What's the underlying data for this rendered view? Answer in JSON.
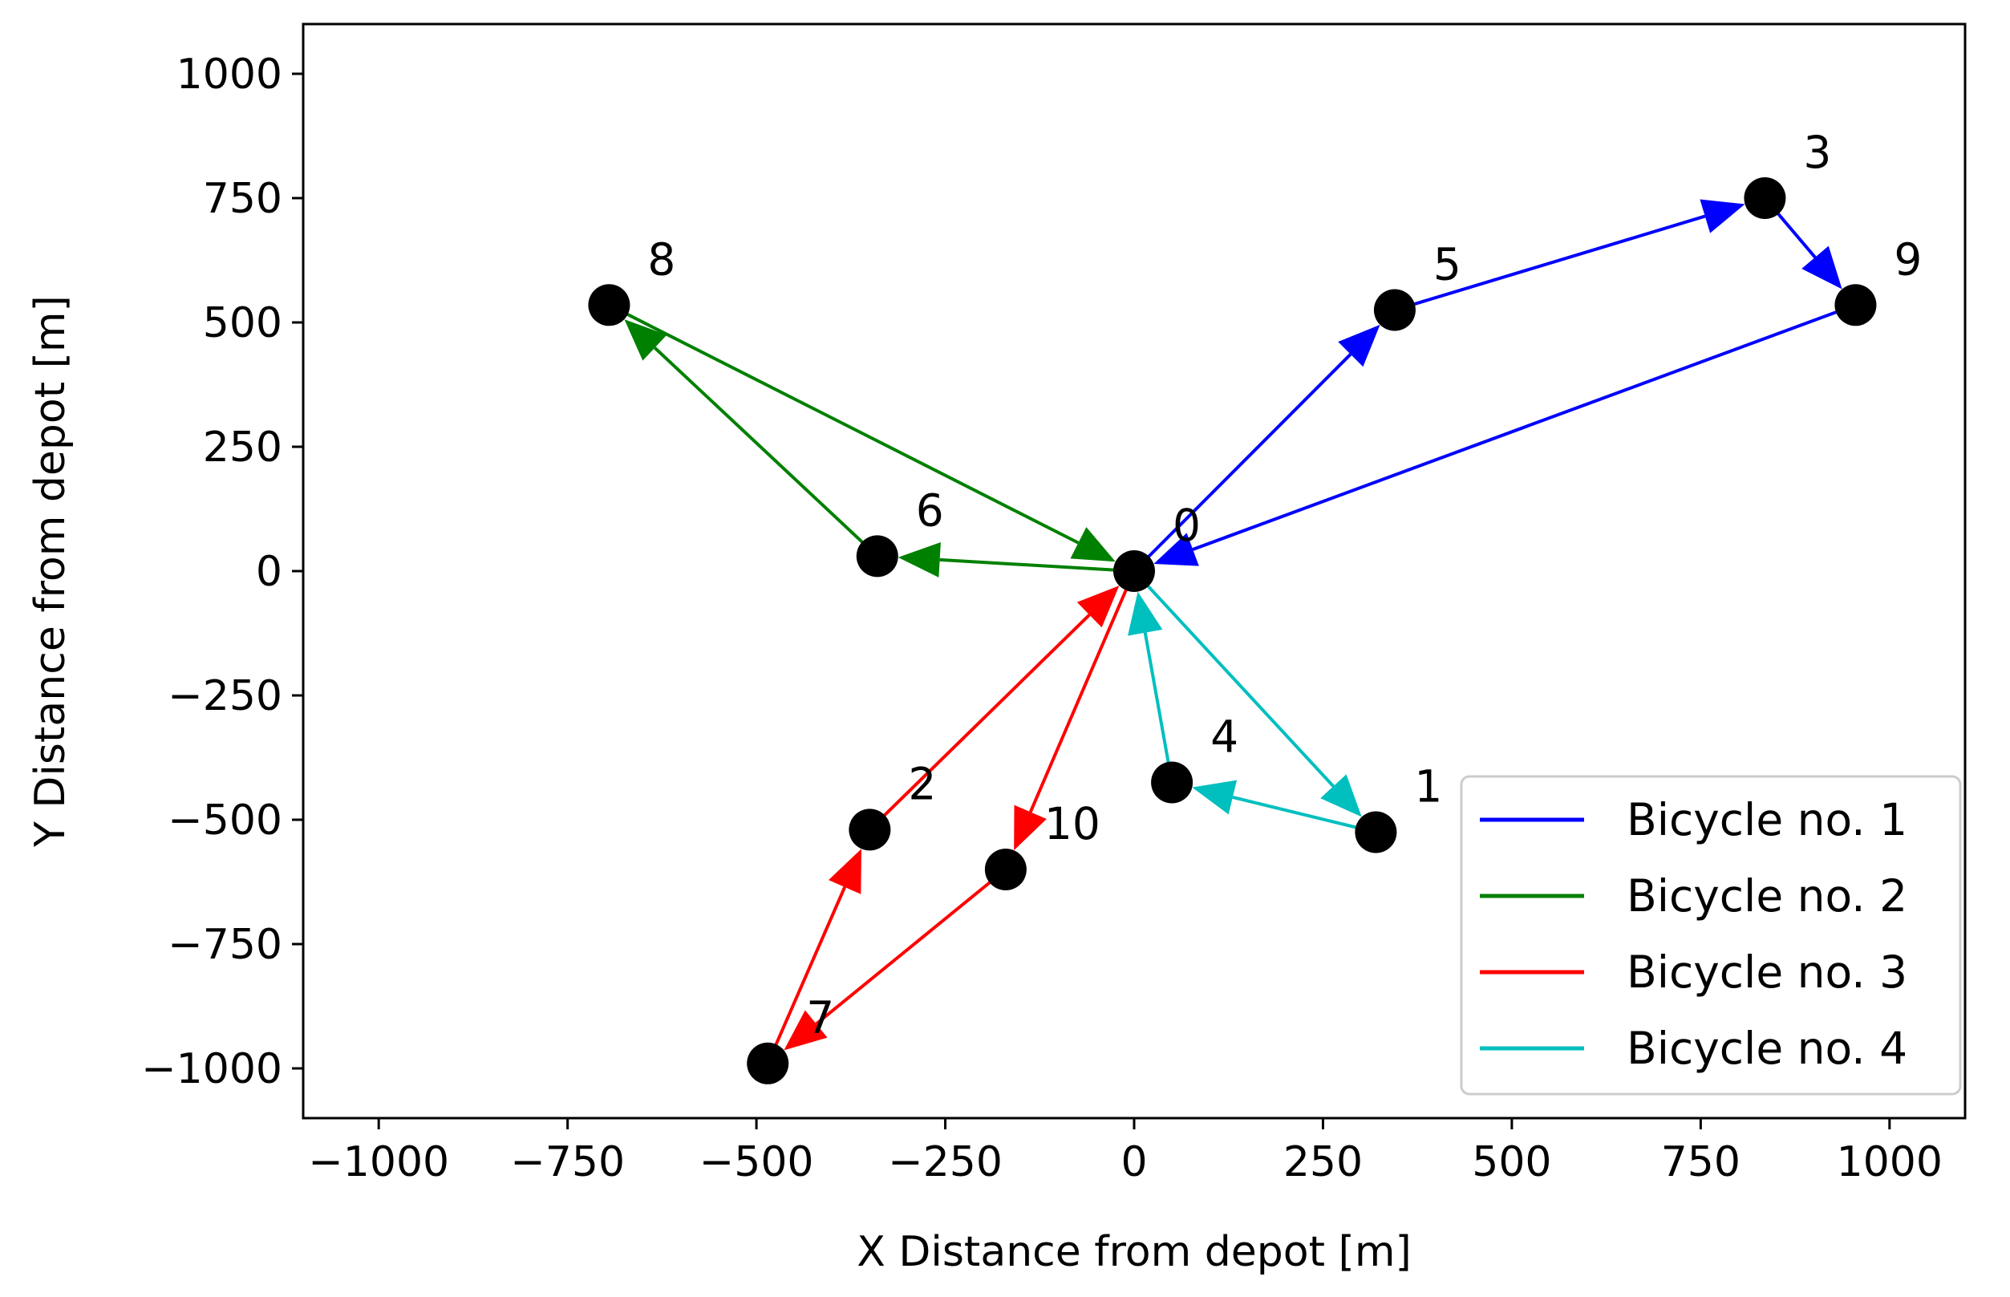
{
  "chart_data": {
    "type": "scatter",
    "xlabel": "X Distance from depot [m]",
    "ylabel": "Y Distance from depot [m]",
    "xlim": [
      -1100,
      1100
    ],
    "ylim": [
      -1100,
      1100
    ],
    "xticks": [
      -1000,
      -750,
      -500,
      -250,
      0,
      250,
      500,
      750,
      1000
    ],
    "yticks": [
      1000,
      750,
      500,
      250,
      0,
      -250,
      -500,
      -750,
      -1000
    ],
    "xtick_labels": [
      "−1000",
      "−750",
      "−500",
      "−250",
      "0",
      "250",
      "500",
      "750",
      "1000"
    ],
    "ytick_labels": [
      "1000",
      "750",
      "500",
      "250",
      "0",
      "−250",
      "−500",
      "−750",
      "−1000"
    ],
    "grid": false,
    "legend_position": "bottom-right",
    "nodes": [
      {
        "id": "0",
        "x": 0,
        "y": 0
      },
      {
        "id": "1",
        "x": 320,
        "y": -525
      },
      {
        "id": "2",
        "x": -350,
        "y": -520
      },
      {
        "id": "3",
        "x": 835,
        "y": 750
      },
      {
        "id": "4",
        "x": 50,
        "y": -425
      },
      {
        "id": "5",
        "x": 345,
        "y": 525
      },
      {
        "id": "6",
        "x": -340,
        "y": 30
      },
      {
        "id": "7",
        "x": -485,
        "y": -990
      },
      {
        "id": "8",
        "x": -695,
        "y": 535
      },
      {
        "id": "9",
        "x": 955,
        "y": 535
      },
      {
        "id": "10",
        "x": -170,
        "y": -600
      }
    ],
    "series": [
      {
        "name": "Bicycle no. 1",
        "color": "#0000ff",
        "route": [
          "0",
          "5",
          "3",
          "9",
          "0"
        ]
      },
      {
        "name": "Bicycle no. 2",
        "color": "#008000",
        "route": [
          "0",
          "6",
          "8",
          "0"
        ]
      },
      {
        "name": "Bicycle no. 3",
        "color": "#ff0000",
        "route": [
          "0",
          "10",
          "7",
          "2",
          "0"
        ]
      },
      {
        "name": "Bicycle no. 4",
        "color": "#00bfbf",
        "route": [
          "0",
          "1",
          "4",
          "0"
        ]
      }
    ]
  }
}
